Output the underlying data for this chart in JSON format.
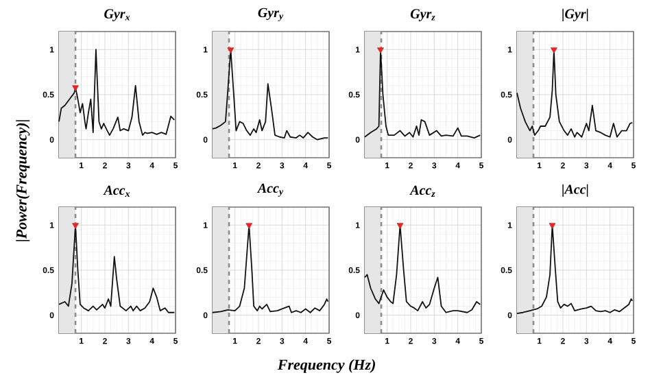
{
  "chart_data": [
    {
      "type": "line",
      "title": "Gyr$_{x}$",
      "xlim": [
        0.05,
        5
      ],
      "ylim": [
        -0.2,
        1.2
      ],
      "xticks": [
        1,
        2,
        3,
        4,
        5
      ],
      "yticks": [
        0,
        0.5,
        1
      ],
      "grid": true,
      "bands": [
        {
          "axis": "x",
          "from": 0.05,
          "to": 0.75,
          "color": "#e6e6e6"
        }
      ],
      "ref_lines": [
        {
          "axis": "x",
          "value": 0.75,
          "color": "#8c8c8c",
          "line_style": "dashed"
        }
      ],
      "series": [
        {
          "color": "#111111",
          "x": [
            0.05,
            0.15,
            0.3,
            0.5,
            0.7,
            0.75,
            0.85,
            0.95,
            1.05,
            1.15,
            1.2,
            1.3,
            1.4,
            1.5,
            1.62,
            1.75,
            1.85,
            1.95,
            2.1,
            2.2,
            2.35,
            2.55,
            2.65,
            2.8,
            3.0,
            3.15,
            3.3,
            3.45,
            3.6,
            3.7,
            3.8,
            4.0,
            4.2,
            4.4,
            4.6,
            4.8,
            4.95
          ],
          "values": [
            0.2,
            0.35,
            0.38,
            0.45,
            0.52,
            0.58,
            0.45,
            0.3,
            0.4,
            0.2,
            0.12,
            0.3,
            0.45,
            0.08,
            1.0,
            0.2,
            0.12,
            0.18,
            0.1,
            0.05,
            0.12,
            0.25,
            0.1,
            0.12,
            0.1,
            0.25,
            0.6,
            0.2,
            0.05,
            0.08,
            0.07,
            0.08,
            0.06,
            0.08,
            0.06,
            0.26,
            0.22
          ]
        },
        {
          "type": "scatter",
          "color": "#e02828",
          "marker": "triangle",
          "x": [
            0.75
          ],
          "values": [
            0.58
          ]
        }
      ]
    },
    {
      "type": "line",
      "title": "Gyr$_{y}$",
      "xlim": [
        0.05,
        5
      ],
      "ylim": [
        -0.2,
        1.2
      ],
      "xticks": [
        1,
        2,
        3,
        4,
        5
      ],
      "yticks": [
        0,
        0.5,
        1
      ],
      "grid": true,
      "bands": [
        {
          "axis": "x",
          "from": 0.05,
          "to": 0.75,
          "color": "#e6e6e6"
        }
      ],
      "ref_lines": [
        {
          "axis": "x",
          "value": 0.75,
          "color": "#8c8c8c",
          "line_style": "dashed"
        }
      ],
      "series": [
        {
          "color": "#111111",
          "x": [
            0.05,
            0.2,
            0.4,
            0.6,
            0.7,
            0.82,
            0.95,
            1.05,
            1.2,
            1.35,
            1.5,
            1.65,
            1.8,
            1.9,
            2.05,
            2.15,
            2.3,
            2.4,
            2.55,
            2.7,
            2.9,
            3.1,
            3.2,
            3.35,
            3.6,
            3.75,
            3.9,
            4.1,
            4.3,
            4.5,
            4.8,
            4.95
          ],
          "values": [
            0.12,
            0.13,
            0.16,
            0.2,
            0.55,
            1.0,
            0.5,
            0.1,
            0.2,
            0.18,
            0.1,
            0.05,
            0.12,
            0.08,
            0.22,
            0.1,
            0.2,
            0.62,
            0.35,
            0.05,
            0.03,
            0.02,
            0.1,
            0.03,
            0.02,
            0.05,
            0.02,
            0.08,
            0.03,
            0.0,
            0.02,
            0.02
          ]
        },
        {
          "type": "scatter",
          "color": "#e02828",
          "marker": "triangle",
          "x": [
            0.82
          ],
          "values": [
            1.0
          ]
        }
      ]
    },
    {
      "type": "line",
      "title": "Gyr$_{z}$",
      "xlim": [
        0.05,
        5
      ],
      "ylim": [
        -0.2,
        1.2
      ],
      "xticks": [
        1,
        2,
        3,
        4,
        5
      ],
      "yticks": [
        0,
        0.5,
        1
      ],
      "grid": true,
      "bands": [
        {
          "axis": "x",
          "from": 0.05,
          "to": 0.75,
          "color": "#e6e6e6"
        }
      ],
      "ref_lines": [
        {
          "axis": "x",
          "value": 0.75,
          "color": "#8c8c8c",
          "line_style": "dashed"
        }
      ],
      "series": [
        {
          "color": "#111111",
          "x": [
            0.05,
            0.3,
            0.55,
            0.65,
            0.72,
            0.82,
            0.95,
            1.05,
            1.3,
            1.55,
            1.75,
            1.95,
            2.1,
            2.25,
            2.35,
            2.45,
            2.6,
            2.8,
            3.1,
            3.3,
            3.5,
            3.8,
            4.0,
            4.15,
            4.4,
            4.7,
            4.95
          ],
          "values": [
            0.03,
            0.08,
            0.12,
            0.15,
            1.0,
            0.5,
            0.15,
            0.05,
            0.05,
            0.1,
            0.04,
            0.08,
            0.03,
            0.15,
            0.05,
            0.22,
            0.2,
            0.05,
            0.1,
            0.04,
            0.05,
            0.04,
            0.13,
            0.04,
            0.04,
            0.02,
            0.05
          ]
        },
        {
          "type": "scatter",
          "color": "#e02828",
          "marker": "triangle",
          "x": [
            0.72
          ],
          "values": [
            1.0
          ]
        }
      ]
    },
    {
      "type": "line",
      "title": "|Gyr|",
      "xlim": [
        0.05,
        5
      ],
      "ylim": [
        -0.2,
        1.2
      ],
      "xticks": [
        1,
        2,
        3,
        4,
        5
      ],
      "yticks": [
        0,
        0.5,
        1
      ],
      "grid": true,
      "bands": [
        {
          "axis": "x",
          "from": 0.05,
          "to": 0.75,
          "color": "#e6e6e6"
        }
      ],
      "ref_lines": [
        {
          "axis": "x",
          "value": 0.75,
          "color": "#8c8c8c",
          "line_style": "dashed"
        }
      ],
      "series": [
        {
          "color": "#111111",
          "x": [
            0.05,
            0.2,
            0.4,
            0.6,
            0.7,
            0.8,
            0.95,
            1.05,
            1.25,
            1.45,
            1.55,
            1.62,
            1.7,
            1.85,
            2.05,
            2.2,
            2.35,
            2.5,
            2.6,
            2.8,
            3.0,
            3.1,
            3.25,
            3.4,
            3.6,
            3.8,
            4.0,
            4.15,
            4.3,
            4.5,
            4.7,
            4.85,
            4.95
          ],
          "values": [
            0.52,
            0.35,
            0.2,
            0.1,
            0.15,
            0.05,
            0.1,
            0.15,
            0.15,
            0.25,
            0.55,
            1.0,
            0.5,
            0.2,
            0.1,
            0.05,
            0.12,
            0.03,
            0.08,
            0.03,
            0.18,
            0.1,
            0.38,
            0.1,
            0.08,
            0.05,
            0.03,
            0.18,
            0.03,
            0.1,
            0.1,
            0.18,
            0.19
          ]
        },
        {
          "type": "scatter",
          "color": "#e02828",
          "marker": "triangle",
          "x": [
            1.62
          ],
          "values": [
            1.0
          ]
        }
      ]
    },
    {
      "type": "line",
      "title": "Acc$_{x}$",
      "ylabel": "|Power(Frequency)|",
      "xlim": [
        0.05,
        5
      ],
      "ylim": [
        -0.2,
        1.2
      ],
      "xticks": [
        1,
        2,
        3,
        4,
        5
      ],
      "yticks": [
        0,
        0.5,
        1
      ],
      "grid": true,
      "bands": [
        {
          "axis": "x",
          "from": 0.05,
          "to": 0.75,
          "color": "#e6e6e6"
        }
      ],
      "ref_lines": [
        {
          "axis": "x",
          "value": 0.75,
          "color": "#8c8c8c",
          "line_style": "dashed"
        }
      ],
      "series": [
        {
          "color": "#111111",
          "x": [
            0.05,
            0.3,
            0.45,
            0.6,
            0.75,
            0.85,
            0.95,
            1.1,
            1.3,
            1.5,
            1.65,
            1.9,
            2.0,
            2.15,
            2.25,
            2.4,
            2.5,
            2.65,
            2.9,
            3.1,
            3.2,
            3.35,
            3.5,
            3.7,
            3.9,
            4.05,
            4.2,
            4.35,
            4.55,
            4.7,
            4.95
          ],
          "values": [
            0.12,
            0.15,
            0.1,
            0.35,
            1.0,
            0.5,
            0.12,
            0.08,
            0.05,
            0.1,
            0.06,
            0.12,
            0.08,
            0.18,
            0.1,
            0.65,
            0.4,
            0.1,
            0.05,
            0.1,
            0.05,
            0.1,
            0.05,
            0.08,
            0.15,
            0.3,
            0.2,
            0.05,
            0.08,
            0.03,
            0.03
          ]
        },
        {
          "type": "scatter",
          "color": "#e02828",
          "marker": "triangle",
          "x": [
            0.75
          ],
          "values": [
            1.0
          ]
        }
      ]
    },
    {
      "type": "line",
      "title": "Acc$_{y}$",
      "xlabel": "Frequency (Hz)",
      "xlim": [
        0.05,
        5
      ],
      "ylim": [
        -0.2,
        1.2
      ],
      "xticks": [
        1,
        2,
        3,
        4,
        5
      ],
      "yticks": [
        0,
        0.5,
        1
      ],
      "grid": true,
      "bands": [
        {
          "axis": "x",
          "from": 0.05,
          "to": 0.75,
          "color": "#e6e6e6"
        }
      ],
      "ref_lines": [
        {
          "axis": "x",
          "value": 0.75,
          "color": "#8c8c8c",
          "line_style": "dashed"
        }
      ],
      "series": [
        {
          "color": "#111111",
          "x": [
            0.05,
            0.4,
            0.7,
            1.0,
            1.2,
            1.4,
            1.6,
            1.72,
            1.8,
            1.95,
            2.05,
            2.15,
            2.35,
            2.5,
            2.8,
            3.1,
            3.3,
            3.4,
            3.6,
            3.8,
            4.0,
            4.2,
            4.4,
            4.6,
            4.8,
            4.9,
            4.95
          ],
          "values": [
            0.03,
            0.04,
            0.06,
            0.05,
            0.1,
            0.3,
            1.0,
            0.5,
            0.1,
            0.05,
            0.1,
            0.07,
            0.12,
            0.04,
            0.05,
            0.08,
            0.1,
            0.03,
            0.05,
            0.03,
            0.07,
            0.03,
            0.08,
            0.05,
            0.12,
            0.18,
            0.15
          ]
        },
        {
          "type": "scatter",
          "color": "#e02828",
          "marker": "triangle",
          "x": [
            1.6
          ],
          "values": [
            1.0
          ]
        }
      ]
    },
    {
      "type": "line",
      "title": "Acc$_{z}$",
      "xlim": [
        0.05,
        5
      ],
      "ylim": [
        -0.2,
        1.2
      ],
      "xticks": [
        1,
        2,
        3,
        4,
        5
      ],
      "yticks": [
        0,
        0.5,
        1
      ],
      "grid": true,
      "bands": [
        {
          "axis": "x",
          "from": 0.05,
          "to": 0.75,
          "color": "#e6e6e6"
        }
      ],
      "ref_lines": [
        {
          "axis": "x",
          "value": 0.75,
          "color": "#8c8c8c",
          "line_style": "dashed"
        }
      ],
      "series": [
        {
          "color": "#111111",
          "x": [
            0.05,
            0.15,
            0.3,
            0.5,
            0.65,
            0.85,
            1.0,
            1.15,
            1.25,
            1.4,
            1.55,
            1.7,
            1.82,
            2.0,
            2.15,
            2.3,
            2.5,
            2.65,
            2.8,
            3.0,
            3.15,
            3.3,
            3.5,
            3.8,
            4.0,
            4.2,
            4.4,
            4.6,
            4.8,
            4.95
          ],
          "values": [
            0.42,
            0.45,
            0.3,
            0.18,
            0.13,
            0.28,
            0.2,
            0.15,
            0.13,
            0.45,
            1.0,
            0.5,
            0.15,
            0.1,
            0.08,
            0.05,
            0.15,
            0.08,
            0.12,
            0.3,
            0.42,
            0.1,
            0.03,
            0.05,
            0.05,
            0.04,
            0.03,
            0.06,
            0.15,
            0.12
          ]
        },
        {
          "type": "scatter",
          "color": "#e02828",
          "marker": "triangle",
          "x": [
            1.55
          ],
          "values": [
            1.0
          ]
        }
      ]
    },
    {
      "type": "line",
      "title": "|Acc|",
      "xlim": [
        0.05,
        5
      ],
      "ylim": [
        -0.2,
        1.2
      ],
      "xticks": [
        1,
        2,
        3,
        4,
        5
      ],
      "yticks": [
        0,
        0.5,
        1
      ],
      "grid": true,
      "bands": [
        {
          "axis": "x",
          "from": 0.05,
          "to": 0.75,
          "color": "#e6e6e6"
        }
      ],
      "ref_lines": [
        {
          "axis": "x",
          "value": 0.75,
          "color": "#8c8c8c",
          "line_style": "dashed"
        }
      ],
      "series": [
        {
          "color": "#111111",
          "x": [
            0.05,
            0.3,
            0.6,
            0.9,
            1.1,
            1.3,
            1.45,
            1.55,
            1.68,
            1.78,
            1.9,
            2.05,
            2.2,
            2.35,
            2.5,
            2.8,
            3.0,
            3.2,
            3.4,
            3.6,
            3.8,
            4.0,
            4.2,
            4.4,
            4.6,
            4.8,
            4.9,
            4.95
          ],
          "values": [
            0.02,
            0.03,
            0.05,
            0.07,
            0.1,
            0.2,
            0.45,
            1.0,
            0.5,
            0.15,
            0.08,
            0.12,
            0.1,
            0.13,
            0.05,
            0.07,
            0.08,
            0.1,
            0.05,
            0.04,
            0.05,
            0.03,
            0.06,
            0.04,
            0.08,
            0.12,
            0.18,
            0.16
          ]
        },
        {
          "type": "scatter",
          "color": "#e02828",
          "marker": "triangle",
          "x": [
            1.55
          ],
          "values": [
            1.0
          ]
        }
      ]
    }
  ]
}
